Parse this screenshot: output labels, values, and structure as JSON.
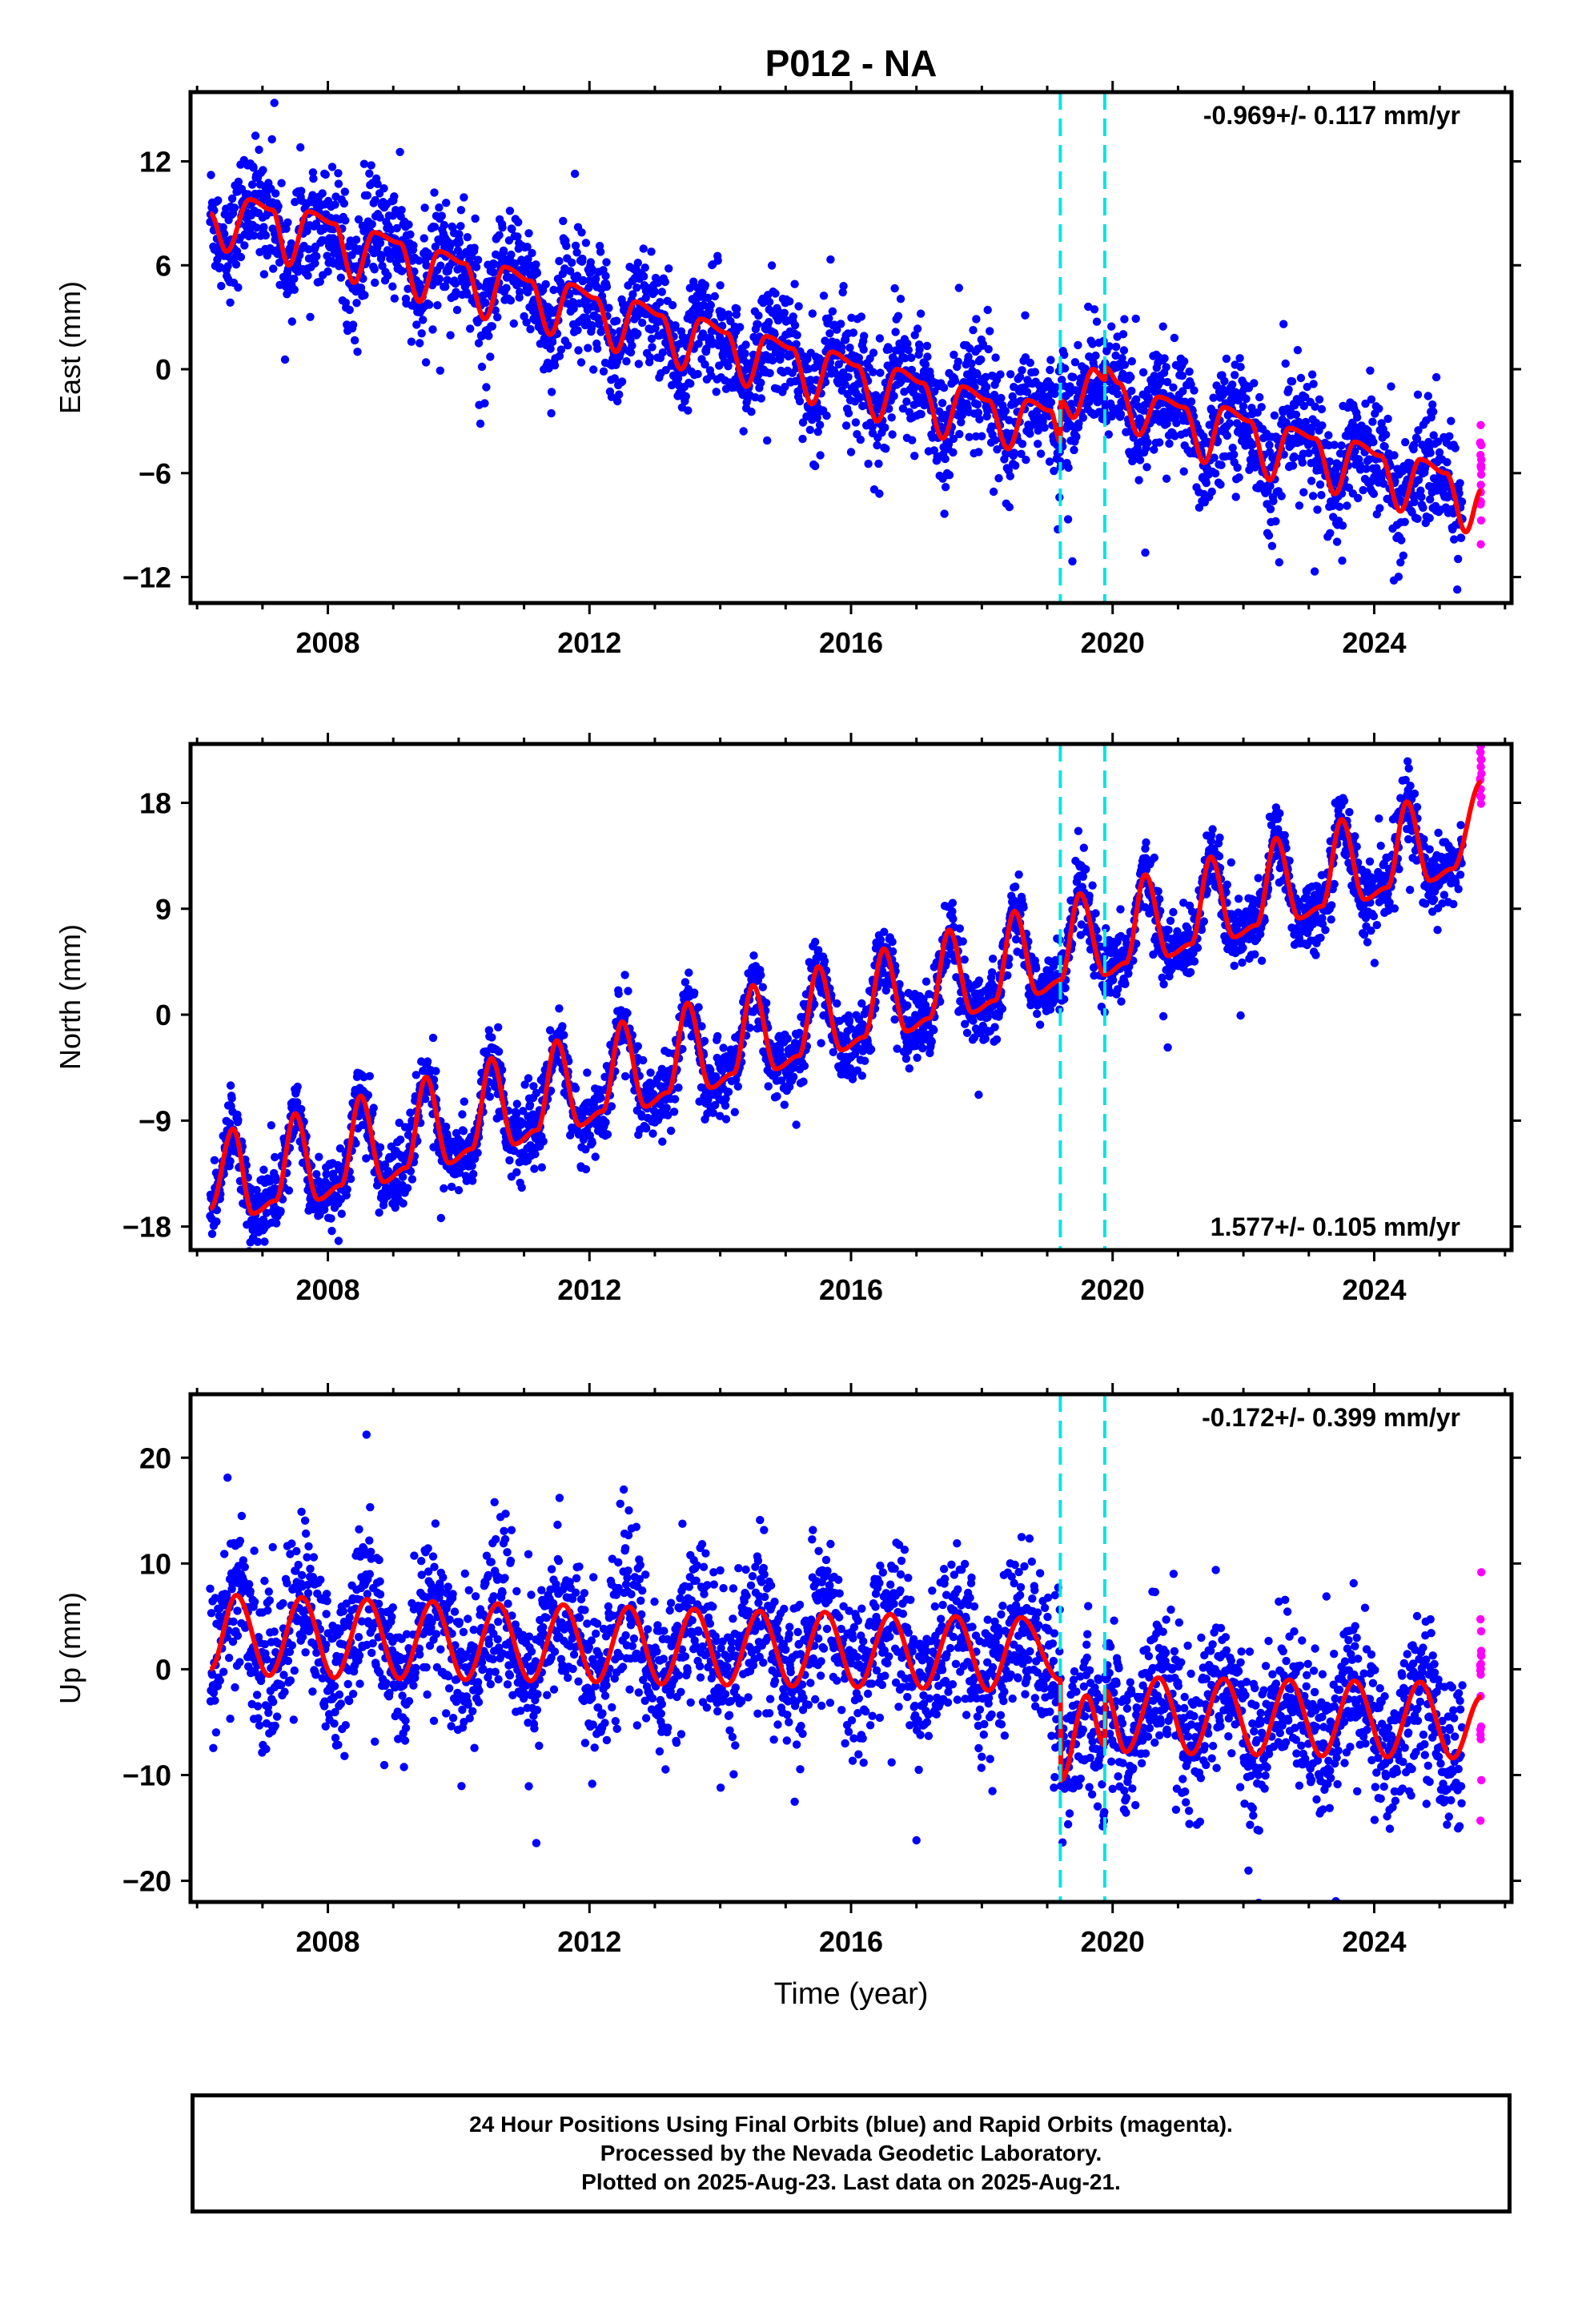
{
  "chart_data": {
    "type": "scatter",
    "title": "P012 - NA",
    "x_axis": {
      "label": "Time (year)",
      "range": [
        2005.9,
        2026.1
      ],
      "ticks": [
        2008,
        2012,
        2016,
        2020,
        2024
      ]
    },
    "vertical_markers": [
      2019.2,
      2019.88
    ],
    "colors": {
      "final_orbits": "#0000ff",
      "rapid_orbits": "#ff00ff",
      "model": "#ff0000",
      "markers": "#00e5e5"
    },
    "rapid_start": 2025.35,
    "data_end": 2025.64,
    "grid": false,
    "panels": [
      {
        "id": "east",
        "ylabel": "East (mm)",
        "ylim": [
          -13.5,
          16
        ],
        "yticks": [
          12,
          6,
          0,
          -6,
          -12
        ],
        "rate_text": "-0.969+/- 0.117 mm/yr",
        "rate_position": "top-right",
        "model_points": [
          [
            2006.2,
            9
          ],
          [
            2006.45,
            6.8
          ],
          [
            2006.8,
            9.8
          ],
          [
            2007.15,
            9.2
          ],
          [
            2007.4,
            6.0
          ],
          [
            2007.7,
            9.1
          ],
          [
            2008.1,
            8.4
          ],
          [
            2008.4,
            5.0
          ],
          [
            2008.7,
            7.9
          ],
          [
            2009.1,
            7.3
          ],
          [
            2009.4,
            3.9
          ],
          [
            2009.7,
            6.8
          ],
          [
            2010.1,
            6.1
          ],
          [
            2010.4,
            2.9
          ],
          [
            2010.7,
            5.9
          ],
          [
            2011.1,
            5.1
          ],
          [
            2011.4,
            2.0
          ],
          [
            2011.7,
            4.9
          ],
          [
            2012.1,
            4.1
          ],
          [
            2012.4,
            1.0
          ],
          [
            2012.7,
            3.9
          ],
          [
            2013.1,
            3.1
          ],
          [
            2013.4,
            0.0
          ],
          [
            2013.7,
            2.9
          ],
          [
            2014.1,
            2.1
          ],
          [
            2014.4,
            -1.0
          ],
          [
            2014.7,
            1.9
          ],
          [
            2015.1,
            1.2
          ],
          [
            2015.4,
            -2.0
          ],
          [
            2015.7,
            1.0
          ],
          [
            2016.1,
            0.2
          ],
          [
            2016.4,
            -3.0
          ],
          [
            2016.7,
            0.0
          ],
          [
            2017.1,
            -0.8
          ],
          [
            2017.4,
            -4.0
          ],
          [
            2017.7,
            -1.0
          ],
          [
            2018.1,
            -1.8
          ],
          [
            2018.4,
            -4.6
          ],
          [
            2018.7,
            -1.8
          ],
          [
            2019.05,
            -2.4
          ],
          [
            2019.2,
            -4.2
          ],
          [
            2019.21,
            -1.8
          ],
          [
            2019.4,
            -2.8
          ],
          [
            2019.7,
            0.0
          ],
          [
            2019.88,
            -0.6
          ],
          [
            2019.89,
            0.1
          ],
          [
            2020.1,
            -0.8
          ],
          [
            2020.4,
            -3.8
          ],
          [
            2020.7,
            -1.6
          ],
          [
            2021.1,
            -2.2
          ],
          [
            2021.4,
            -5.4
          ],
          [
            2021.7,
            -2.2
          ],
          [
            2022.1,
            -3.0
          ],
          [
            2022.4,
            -6.4
          ],
          [
            2022.7,
            -3.4
          ],
          [
            2023.1,
            -4.0
          ],
          [
            2023.4,
            -7.2
          ],
          [
            2023.7,
            -4.2
          ],
          [
            2024.1,
            -5.0
          ],
          [
            2024.4,
            -8.2
          ],
          [
            2024.7,
            -5.2
          ],
          [
            2025.1,
            -6.0
          ],
          [
            2025.4,
            -9.4
          ],
          [
            2025.64,
            -7.0
          ]
        ]
      },
      {
        "id": "north",
        "ylabel": "North (mm)",
        "ylim": [
          -20,
          23
        ],
        "yticks": [
          18,
          9,
          0,
          -9,
          -18
        ],
        "rate_text": "1.577+/- 0.105 mm/yr",
        "rate_position": "bottom-right",
        "model_points": [
          [
            2006.2,
            -16.5
          ],
          [
            2006.55,
            -9.7
          ],
          [
            2006.85,
            -16.9
          ],
          [
            2007.2,
            -15.8
          ],
          [
            2007.5,
            -8.4
          ],
          [
            2007.85,
            -15.7
          ],
          [
            2008.2,
            -14.5
          ],
          [
            2008.5,
            -6.9
          ],
          [
            2008.85,
            -14.2
          ],
          [
            2009.2,
            -13.0
          ],
          [
            2009.5,
            -5.3
          ],
          [
            2009.85,
            -12.6
          ],
          [
            2010.2,
            -11.4
          ],
          [
            2010.5,
            -3.7
          ],
          [
            2010.85,
            -11.0
          ],
          [
            2011.2,
            -9.8
          ],
          [
            2011.5,
            -2.2
          ],
          [
            2011.85,
            -9.4
          ],
          [
            2012.2,
            -8.2
          ],
          [
            2012.5,
            -0.6
          ],
          [
            2012.85,
            -7.8
          ],
          [
            2013.2,
            -6.6
          ],
          [
            2013.5,
            1.0
          ],
          [
            2013.85,
            -6.2
          ],
          [
            2014.2,
            -5.0
          ],
          [
            2014.5,
            2.5
          ],
          [
            2014.85,
            -4.6
          ],
          [
            2015.2,
            -3.5
          ],
          [
            2015.5,
            4.1
          ],
          [
            2015.85,
            -3.0
          ],
          [
            2016.2,
            -1.9
          ],
          [
            2016.5,
            5.6
          ],
          [
            2016.85,
            -1.4
          ],
          [
            2017.2,
            -0.3
          ],
          [
            2017.5,
            7.2
          ],
          [
            2017.85,
            0.2
          ],
          [
            2018.2,
            1.2
          ],
          [
            2018.5,
            8.8
          ],
          [
            2018.85,
            1.8
          ],
          [
            2019.2,
            2.9
          ],
          [
            2019.5,
            10.3
          ],
          [
            2019.88,
            3.4
          ],
          [
            2020.2,
            4.4
          ],
          [
            2020.5,
            11.9
          ],
          [
            2020.85,
            5.0
          ],
          [
            2021.2,
            6.0
          ],
          [
            2021.5,
            13.4
          ],
          [
            2021.85,
            6.6
          ],
          [
            2022.2,
            7.6
          ],
          [
            2022.5,
            15.0
          ],
          [
            2022.85,
            8.2
          ],
          [
            2023.2,
            9.2
          ],
          [
            2023.5,
            16.6
          ],
          [
            2023.85,
            9.8
          ],
          [
            2024.2,
            10.8
          ],
          [
            2024.5,
            18.1
          ],
          [
            2024.85,
            11.4
          ],
          [
            2025.2,
            12.4
          ],
          [
            2025.64,
            19.8
          ]
        ]
      },
      {
        "id": "up",
        "ylabel": "Up (mm)",
        "ylim": [
          -22,
          26
        ],
        "yticks": [
          20,
          10,
          0,
          -10,
          -20
        ],
        "rate_text": "-0.172+/- 0.399 mm/yr",
        "rate_position": "top-right",
        "model_points": [
          [
            2006.2,
            0
          ],
          [
            2006.6,
            7.0
          ],
          [
            2007.1,
            -0.6
          ],
          [
            2007.6,
            6.8
          ],
          [
            2008.1,
            -0.8
          ],
          [
            2008.6,
            6.6
          ],
          [
            2009.1,
            -0.9
          ],
          [
            2009.6,
            6.4
          ],
          [
            2010.1,
            -1.0
          ],
          [
            2010.6,
            6.2
          ],
          [
            2011.1,
            -1.1
          ],
          [
            2011.6,
            6.1
          ],
          [
            2012.1,
            -1.2
          ],
          [
            2012.6,
            5.9
          ],
          [
            2013.1,
            -1.4
          ],
          [
            2013.6,
            5.7
          ],
          [
            2014.1,
            -1.5
          ],
          [
            2014.6,
            5.5
          ],
          [
            2015.1,
            -1.6
          ],
          [
            2015.6,
            5.4
          ],
          [
            2016.1,
            -1.7
          ],
          [
            2016.6,
            5.2
          ],
          [
            2017.1,
            -1.8
          ],
          [
            2017.6,
            5.0
          ],
          [
            2018.1,
            -2.0
          ],
          [
            2018.6,
            4.9
          ],
          [
            2019.2,
            -1.0
          ],
          [
            2019.21,
            -10.5
          ],
          [
            2019.6,
            -2.5
          ],
          [
            2019.88,
            -7.2
          ],
          [
            2019.89,
            -2.0
          ],
          [
            2020.2,
            -7.8
          ],
          [
            2020.7,
            -0.8
          ],
          [
            2021.2,
            -8.0
          ],
          [
            2021.7,
            -0.9
          ],
          [
            2022.2,
            -8.1
          ],
          [
            2022.7,
            -1.0
          ],
          [
            2023.2,
            -8.2
          ],
          [
            2023.7,
            -1.1
          ],
          [
            2024.2,
            -8.3
          ],
          [
            2024.7,
            -1.2
          ],
          [
            2025.2,
            -8.4
          ],
          [
            2025.64,
            -2.6
          ]
        ]
      }
    ]
  },
  "caption": {
    "line1": "24 Hour Positions Using Final Orbits (blue) and Rapid Orbits (magenta).",
    "line2": "Processed by the Nevada Geodetic Laboratory.",
    "line3": "Plotted on 2025-Aug-23. Last data on 2025-Aug-21."
  }
}
